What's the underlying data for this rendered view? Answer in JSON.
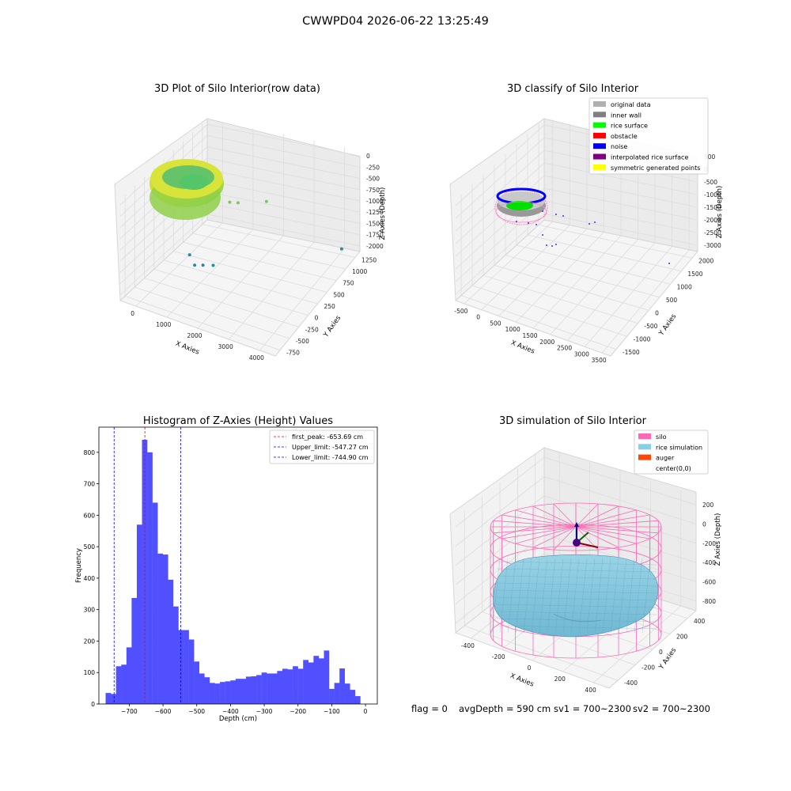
{
  "figure": {
    "suptitle": "CWWPD04 2026-06-22 13:25:49",
    "footer": {
      "flag": "flag = 0",
      "avg_depth": "avgDepth = 590 cm",
      "sv1": "sv1 = 700~2300",
      "sv2": "sv2 = 700~2300"
    }
  },
  "chart_data": [
    {
      "type": "scatter3d",
      "title": "3D Plot of Silo Interior(row data)",
      "xlabel": "X Axies",
      "ylabel": "Y Axies",
      "zlabel": "Z Axies (Depth)",
      "x_ticks": [
        "0",
        "1000",
        "2000",
        "3000",
        "4000"
      ],
      "y_ticks": [
        "-750",
        "-500",
        "-250",
        "0",
        "250",
        "500",
        "750",
        "1000",
        "1250"
      ],
      "z_ticks": [
        "0",
        "-250",
        "-500",
        "-750",
        "-1000",
        "-1250",
        "-1500",
        "-1750",
        "-2000"
      ],
      "colormap": "viridis",
      "outlier_points": [
        {
          "x": 3900,
          "y": 1250,
          "z": -2000
        },
        {
          "x": 1100,
          "y": 200,
          "z": -1900
        },
        {
          "x": 900,
          "y": 100,
          "z": -1850
        },
        {
          "x": 700,
          "y": 50,
          "z": -1850
        },
        {
          "x": 600,
          "y": 0,
          "z": -1600
        },
        {
          "x": 1500,
          "y": 300,
          "z": -500
        },
        {
          "x": 1700,
          "y": 350,
          "z": -520
        },
        {
          "x": 2300,
          "y": 600,
          "z": -600
        }
      ]
    },
    {
      "type": "scatter3d",
      "title": "3D classify of Silo Interior",
      "xlabel": "X Axies",
      "ylabel": "Y Axies",
      "zlabel": "Z Axies (Depth)",
      "x_ticks": [
        "-500",
        "0",
        "500",
        "1000",
        "1500",
        "2000",
        "2500",
        "3000",
        "3500"
      ],
      "y_ticks": [
        "-1500",
        "-1000",
        "-500",
        "0",
        "500",
        "1000",
        "1500",
        "2000"
      ],
      "z_ticks": [
        "500",
        "0",
        "-500",
        "-1000",
        "-1500",
        "-2000",
        "-2500",
        "-3000"
      ],
      "legend": [
        {
          "label": "original data",
          "color": "#b0b0b0"
        },
        {
          "label": "inner wall",
          "color": "#808080"
        },
        {
          "label": "rice surface",
          "color": "#00ff00"
        },
        {
          "label": "obstacle",
          "color": "#ff0000"
        },
        {
          "label": "noise",
          "color": "#0000ff"
        },
        {
          "label": "interpolated rice surface",
          "color": "#800080"
        },
        {
          "label": "symmetric generated points",
          "color": "#ffff00"
        }
      ]
    },
    {
      "type": "bar",
      "title": "Histogram of Z-Axies (Height) Values",
      "xlabel": "Depth (cm)",
      "ylabel": "Frequency",
      "bar_color": "#5050ff",
      "bin_width": 15.4,
      "bins_start": [
        -770,
        -754.6,
        -739.2,
        -723.8,
        -708.4,
        -693,
        -677.6,
        -662.2,
        -646.8,
        -631.4,
        -616,
        -600.6,
        -585.2,
        -569.8,
        -554.4,
        -539,
        -523.6,
        -508.2,
        -492.8,
        -477.4,
        -462,
        -446.6,
        -431.2,
        -415.8,
        -400.4,
        -385,
        -369.6,
        -354.2,
        -338.8,
        -323.4,
        -308,
        -292.6,
        -277.2,
        -261.8,
        -246.4,
        -231,
        -215.6,
        -200.2,
        -184.8,
        -169.4,
        -154,
        -138.6,
        -123.2,
        -107.8,
        -92.4,
        -77,
        -61.6,
        -46.2,
        -30.8,
        -15.4
      ],
      "values": [
        35,
        32,
        120,
        125,
        180,
        337,
        570,
        840,
        800,
        640,
        478,
        475,
        395,
        310,
        235,
        235,
        205,
        135,
        97,
        85,
        67,
        65,
        70,
        72,
        75,
        80,
        80,
        87,
        88,
        92,
        100,
        97,
        97,
        105,
        112,
        110,
        120,
        112,
        140,
        132,
        153,
        145,
        170,
        48,
        67,
        113,
        65,
        45,
        25,
        0
      ],
      "xlim": [
        -790,
        35
      ],
      "ylim": [
        0,
        880
      ],
      "x_ticks": [
        -700,
        -600,
        -500,
        -400,
        -300,
        -200,
        -100,
        0
      ],
      "y_ticks": [
        0,
        100,
        200,
        300,
        400,
        500,
        600,
        700,
        800
      ],
      "vlines": [
        {
          "label": "first_peak: -653.69 cm",
          "x": -653.69,
          "color": "#ff0000"
        },
        {
          "label": "Upper_limit: -547.27 cm",
          "x": -547.27,
          "color": "#0000ff"
        },
        {
          "label": "Lower_limit: -744.90 cm",
          "x": -744.9,
          "color": "#0000ff"
        }
      ],
      "legend_position": "top-right"
    },
    {
      "type": "surface3d",
      "title": "3D simulation of Silo Interior",
      "xlabel": "X Axies",
      "ylabel": "Y Axies",
      "zlabel": "Z Axies (Depth)",
      "x_ticks": [
        "-400",
        "-200",
        "0",
        "200",
        "400"
      ],
      "y_ticks": [
        "-400",
        "-200",
        "0",
        "200",
        "400"
      ],
      "z_ticks": [
        "200",
        "0",
        "-200",
        "-400",
        "-600",
        "-800"
      ],
      "legend": [
        {
          "label": "silo",
          "color": "#ff69b4"
        },
        {
          "label": "rice simulation",
          "color": "#87ceeb"
        },
        {
          "label": "auger",
          "color": "#ff4500"
        },
        {
          "label": "center(0,0)",
          "color": ""
        }
      ]
    }
  ]
}
